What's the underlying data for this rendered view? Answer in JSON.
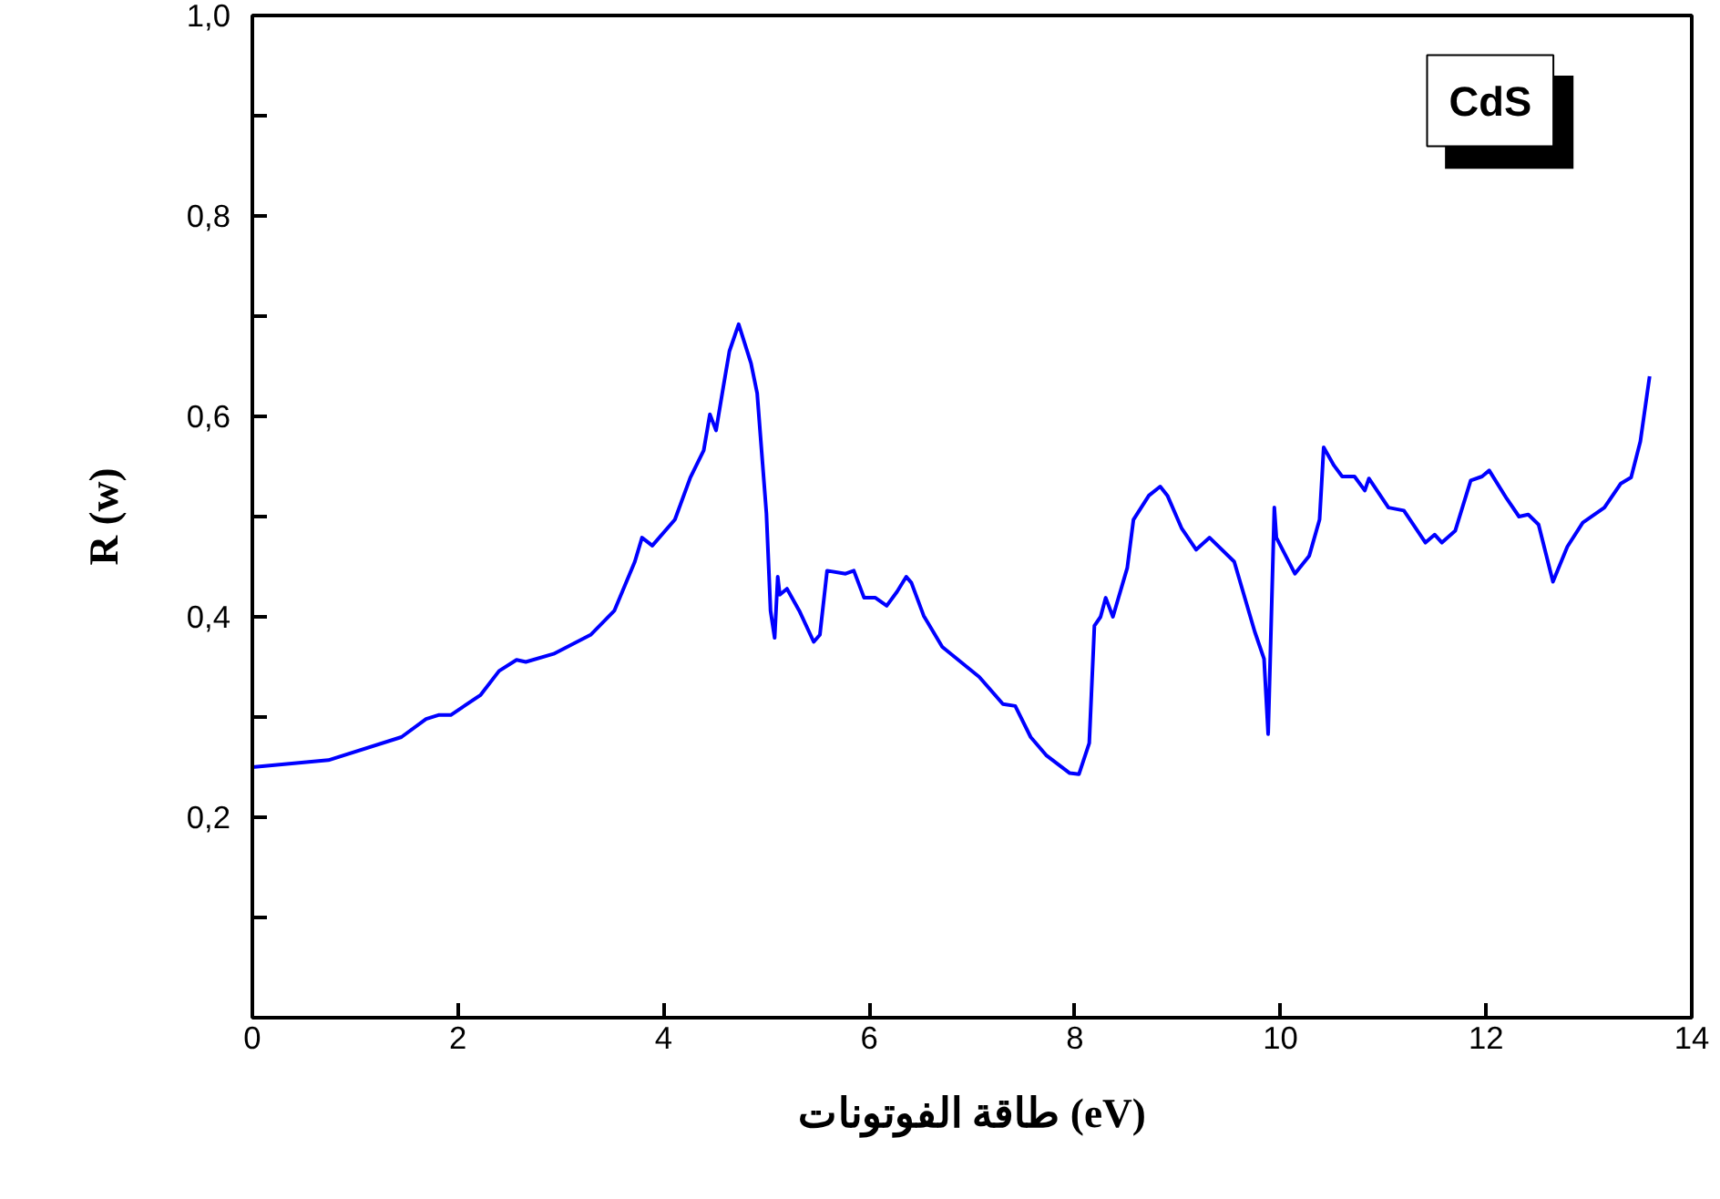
{
  "chart_data": {
    "type": "line",
    "xlabel": "طاقة الفوتونات (eV)",
    "ylabel": "R (w)",
    "annotations": [
      "CdS"
    ],
    "xlim": [
      0,
      14
    ],
    "xticks": [
      0,
      2,
      4,
      6,
      8,
      10,
      12,
      14
    ],
    "ylim": [
      0,
      1
    ],
    "yticks": [
      {
        "value": 0.1,
        "label": null
      },
      {
        "value": 0.2,
        "label": "0,2"
      },
      {
        "value": 0.3,
        "label": null
      },
      {
        "value": 0.4,
        "label": "0,4"
      },
      {
        "value": 0.5,
        "label": null
      },
      {
        "value": 0.6,
        "label": "0,6"
      },
      {
        "value": 0.7,
        "label": null
      },
      {
        "value": 0.8,
        "label": "0,8"
      },
      {
        "value": 0.9,
        "label": null
      },
      {
        "value": 1.0,
        "label": "1,0"
      }
    ],
    "grid": false,
    "marker": "none",
    "line_style": "solid",
    "series": [
      {
        "color": "#0000ff",
        "x": [
          0,
          0.74,
          1.45,
          1.69,
          1.81,
          1.93,
          2.22,
          2.4,
          2.57,
          2.66,
          2.93,
          3.29,
          3.52,
          3.72,
          3.79,
          3.89,
          4.11,
          4.26,
          4.39,
          4.45,
          4.51,
          4.58,
          4.64,
          4.73,
          4.85,
          4.91,
          5.0,
          5.04,
          5.08,
          5.11,
          5.13,
          5.2,
          5.32,
          5.46,
          5.52,
          5.59,
          5.77,
          5.85,
          5.95,
          6.06,
          6.17,
          6.27,
          6.36,
          6.41,
          6.53,
          6.71,
          7.07,
          7.3,
          7.42,
          7.57,
          7.72,
          7.95,
          8.04,
          8.14,
          8.19,
          8.25,
          8.3,
          8.37,
          8.51,
          8.57,
          8.72,
          8.83,
          8.9,
          9.04,
          9.18,
          9.31,
          9.55,
          9.75,
          9.84,
          9.88,
          9.94,
          9.96,
          10.14,
          10.28,
          10.38,
          10.42,
          10.52,
          10.6,
          10.72,
          10.82,
          10.86,
          11.05,
          11.2,
          11.41,
          11.5,
          11.57,
          11.7,
          11.85,
          11.96,
          12.03,
          12.2,
          12.32,
          12.41,
          12.51,
          12.65,
          12.79,
          12.94,
          13.15,
          13.31,
          13.41,
          13.5,
          13.59
        ],
        "values": [
          0.25,
          0.257,
          0.28,
          0.298,
          0.302,
          0.302,
          0.322,
          0.346,
          0.357,
          0.355,
          0.363,
          0.382,
          0.406,
          0.455,
          0.479,
          0.471,
          0.497,
          0.539,
          0.566,
          0.602,
          0.586,
          0.629,
          0.665,
          0.692,
          0.653,
          0.623,
          0.503,
          0.406,
          0.379,
          0.44,
          0.422,
          0.428,
          0.406,
          0.375,
          0.382,
          0.446,
          0.443,
          0.446,
          0.419,
          0.419,
          0.411,
          0.425,
          0.44,
          0.434,
          0.401,
          0.37,
          0.34,
          0.313,
          0.311,
          0.28,
          0.262,
          0.244,
          0.243,
          0.274,
          0.391,
          0.4,
          0.419,
          0.4,
          0.449,
          0.497,
          0.521,
          0.53,
          0.521,
          0.488,
          0.467,
          0.479,
          0.455,
          0.385,
          0.358,
          0.283,
          0.509,
          0.479,
          0.443,
          0.461,
          0.497,
          0.569,
          0.551,
          0.54,
          0.54,
          0.526,
          0.538,
          0.509,
          0.506,
          0.474,
          0.482,
          0.474,
          0.486,
          0.536,
          0.54,
          0.546,
          0.518,
          0.5,
          0.502,
          0.492,
          0.435,
          0.47,
          0.494,
          0.509,
          0.533,
          0.539,
          0.575,
          0.64
        ]
      }
    ]
  }
}
